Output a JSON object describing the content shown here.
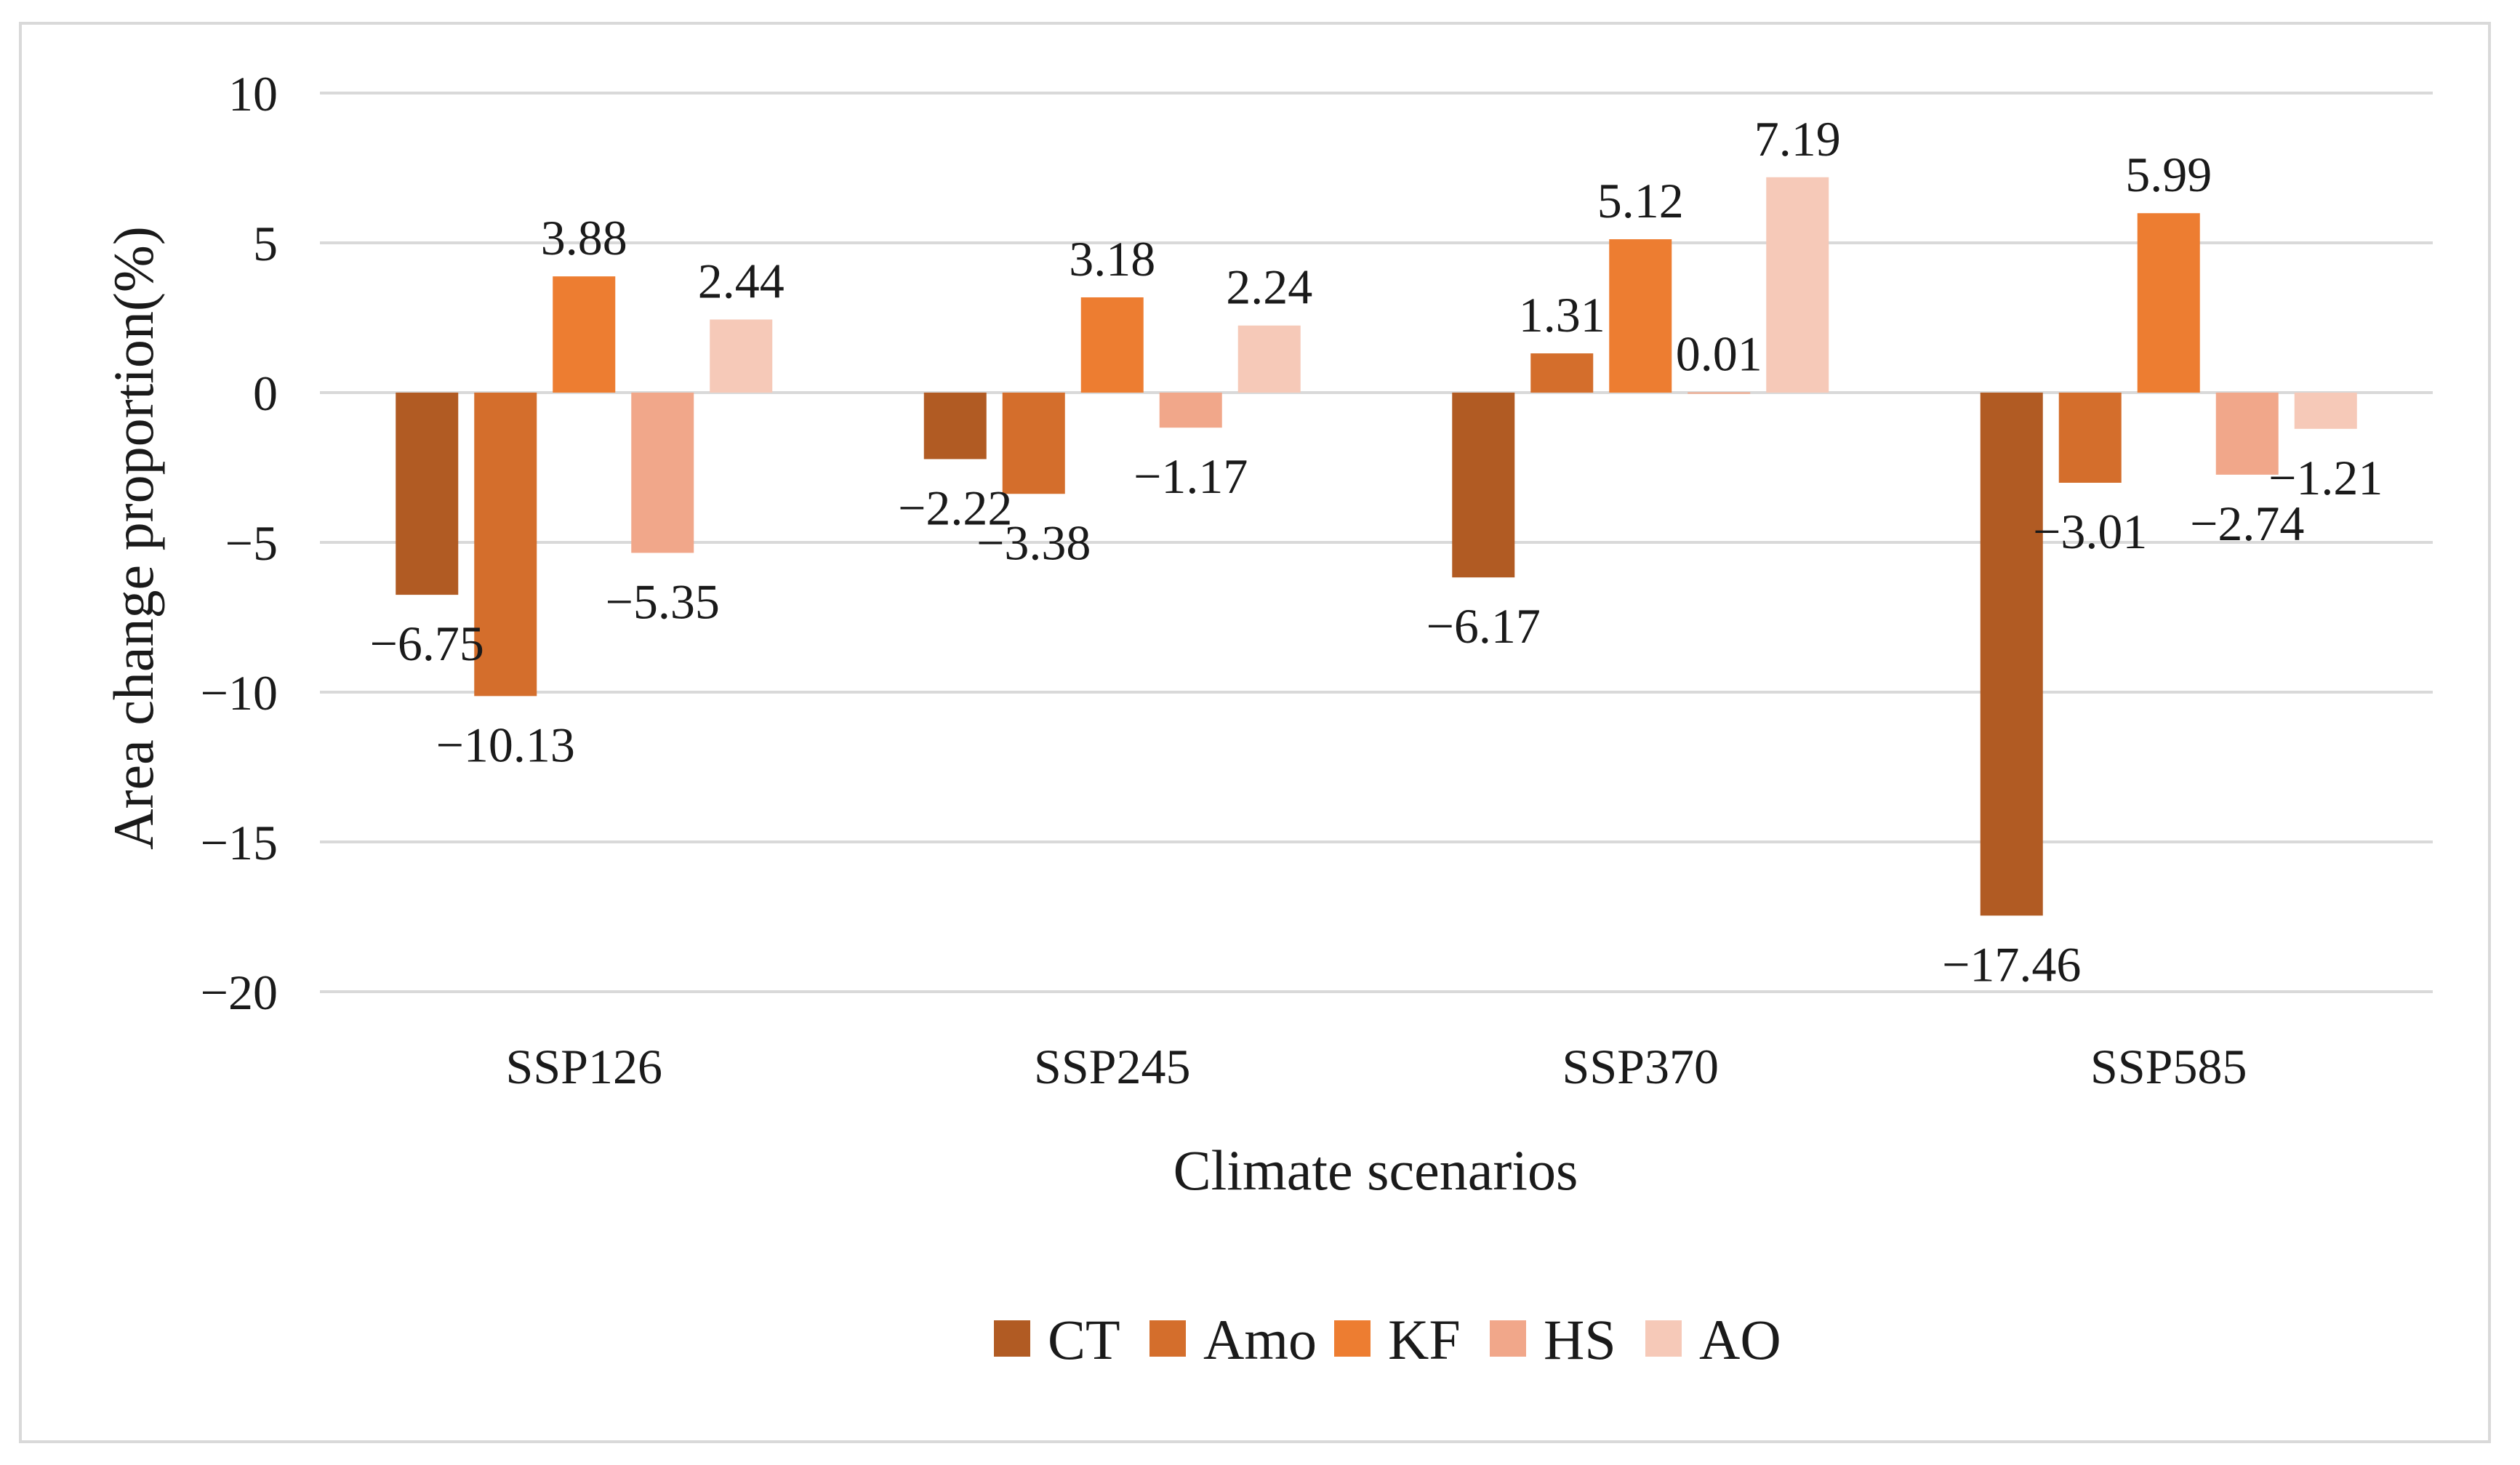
{
  "chart_data": {
    "type": "bar",
    "title": "",
    "xlabel": "Climate scenarios",
    "ylabel": "Area change proportion(%)",
    "ylim": [
      -20,
      10
    ],
    "yticks": [
      10,
      5,
      0,
      -5,
      -10,
      -15,
      -20
    ],
    "ytick_labels": [
      "10",
      "5",
      "0",
      "−5",
      "−10",
      "−15",
      "−20"
    ],
    "grid": true,
    "legend_position": "bottom",
    "categories": [
      "SSP126",
      "SSP245",
      "SSP370",
      "SSP585"
    ],
    "series": [
      {
        "name": "CT",
        "color": "#b15b23",
        "values": [
          -6.75,
          -2.22,
          -6.17,
          -17.46
        ],
        "labels": [
          "−6.75",
          "−2.22",
          "−6.17",
          "−17.46"
        ]
      },
      {
        "name": "Amo",
        "color": "#d46e2c",
        "values": [
          -10.13,
          -3.38,
          1.31,
          -3.01
        ],
        "labels": [
          "−10.13",
          "−3.38",
          "1.31",
          "−3.01"
        ]
      },
      {
        "name": "KF",
        "color": "#ed7d31",
        "values": [
          3.88,
          3.18,
          5.12,
          5.99
        ],
        "labels": [
          "3.88",
          "3.18",
          "5.12",
          "5.99"
        ]
      },
      {
        "name": "HS",
        "color": "#f1a78a",
        "values": [
          -5.35,
          -1.17,
          0.01,
          -2.74
        ],
        "labels": [
          "−5.35",
          "−1.17",
          "0.01",
          "−2.74"
        ]
      },
      {
        "name": "AO",
        "color": "#f6c9b8",
        "values": [
          2.44,
          2.24,
          7.19,
          -1.21
        ],
        "labels": [
          "2.44",
          "2.24",
          "7.19",
          "−1.21"
        ]
      }
    ]
  },
  "colors": {
    "gridline": "#d9d9d9",
    "text": "#1a1a1a"
  }
}
